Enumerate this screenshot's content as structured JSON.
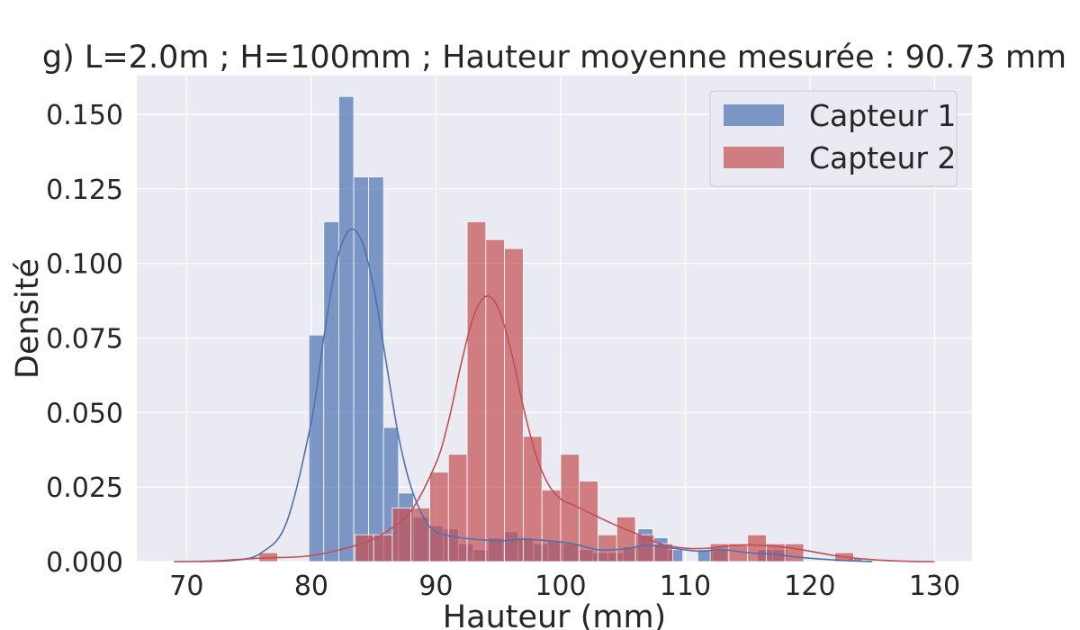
{
  "chart_data": {
    "type": "histogram",
    "title": "g) L=2.0m ; H=100mm ; Hauteur moyenne mesurée : 90.73 mm",
    "xlabel": "Hauteur (mm)",
    "ylabel": "Densité",
    "xlim": [
      66,
      133
    ],
    "ylim": [
      0,
      0.163
    ],
    "xticks": [
      70,
      80,
      90,
      100,
      110,
      120,
      130
    ],
    "xtick_labels": [
      "70",
      "80",
      "90",
      "100",
      "110",
      "120",
      "130"
    ],
    "yticks": [
      0,
      0.025,
      0.05,
      0.075,
      0.1,
      0.125,
      0.15
    ],
    "ytick_labels": [
      "0.000",
      "0.025",
      "0.050",
      "0.075",
      "0.100",
      "0.125",
      "0.150"
    ],
    "grid": true,
    "legend_position": "upper right",
    "bin_width": 1.2,
    "series": [
      {
        "name": "Capteur 1",
        "color": "#4c72b0",
        "bins": [
          {
            "x0": 79.8,
            "x1": 81.0,
            "density": 0.076
          },
          {
            "x0": 81.0,
            "x1": 82.2,
            "density": 0.114
          },
          {
            "x0": 82.2,
            "x1": 83.4,
            "density": 0.156
          },
          {
            "x0": 83.4,
            "x1": 84.6,
            "density": 0.129
          },
          {
            "x0": 84.6,
            "x1": 85.8,
            "density": 0.129
          },
          {
            "x0": 85.8,
            "x1": 87.0,
            "density": 0.045
          },
          {
            "x0": 87.0,
            "x1": 88.2,
            "density": 0.023
          },
          {
            "x0": 88.2,
            "x1": 89.4,
            "density": 0.015
          },
          {
            "x0": 89.4,
            "x1": 90.6,
            "density": 0.012
          },
          {
            "x0": 90.6,
            "x1": 91.8,
            "density": 0.011
          },
          {
            "x0": 91.8,
            "x1": 93.0,
            "density": 0.006
          },
          {
            "x0": 93.0,
            "x1": 94.2,
            "density": 0.004
          },
          {
            "x0": 94.2,
            "x1": 95.4,
            "density": 0.008
          },
          {
            "x0": 95.4,
            "x1": 96.6,
            "density": 0.01
          },
          {
            "x0": 96.6,
            "x1": 97.8,
            "density": 0.008
          },
          {
            "x0": 97.8,
            "x1": 99.0,
            "density": 0.006
          },
          {
            "x0": 99.0,
            "x1": 100.2,
            "density": 0.007
          },
          {
            "x0": 100.2,
            "x1": 101.4,
            "density": 0.006
          },
          {
            "x0": 101.4,
            "x1": 102.6,
            "density": 0.004
          },
          {
            "x0": 102.6,
            "x1": 103.8,
            "density": 0.003
          },
          {
            "x0": 103.8,
            "x1": 105.0,
            "density": 0.003
          },
          {
            "x0": 105.0,
            "x1": 106.2,
            "density": 0.005
          },
          {
            "x0": 106.2,
            "x1": 107.4,
            "density": 0.011
          },
          {
            "x0": 107.4,
            "x1": 108.6,
            "density": 0.008
          },
          {
            "x0": 108.6,
            "x1": 109.8,
            "density": 0.004
          },
          {
            "x0": 111.0,
            "x1": 112.2,
            "density": 0.004
          },
          {
            "x0": 112.2,
            "x1": 113.4,
            "density": 0.004
          },
          {
            "x0": 115.8,
            "x1": 117.0,
            "density": 0.004
          },
          {
            "x0": 117.0,
            "x1": 118.2,
            "density": 0.004
          },
          {
            "x0": 123.0,
            "x1": 124.2,
            "density": 0.001
          }
        ],
        "kde": [
          [
            71,
            0
          ],
          [
            74,
            0.0005
          ],
          [
            76,
            0.003
          ],
          [
            78,
            0.013
          ],
          [
            80,
            0.047
          ],
          [
            81,
            0.075
          ],
          [
            82,
            0.1
          ],
          [
            83,
            0.111
          ],
          [
            84,
            0.108
          ],
          [
            85,
            0.092
          ],
          [
            86,
            0.067
          ],
          [
            87,
            0.042
          ],
          [
            88,
            0.025
          ],
          [
            89,
            0.015
          ],
          [
            90,
            0.01
          ],
          [
            92,
            0.008
          ],
          [
            95,
            0.007
          ],
          [
            97,
            0.0075
          ],
          [
            99,
            0.007
          ],
          [
            101,
            0.006
          ],
          [
            103,
            0.004
          ],
          [
            105,
            0.0042
          ],
          [
            107,
            0.0055
          ],
          [
            109,
            0.0045
          ],
          [
            111,
            0.0035
          ],
          [
            113,
            0.004
          ],
          [
            115,
            0.003
          ],
          [
            117,
            0.0025
          ],
          [
            119,
            0.0015
          ],
          [
            121,
            0.0008
          ],
          [
            123,
            0.0003
          ],
          [
            125,
            0
          ]
        ]
      },
      {
        "name": "Capteur 2",
        "color": "#c44e52",
        "bins": [
          {
            "x0": 75.8,
            "x1": 77.3,
            "density": 0.003
          },
          {
            "x0": 83.5,
            "x1": 85.0,
            "density": 0.009
          },
          {
            "x0": 85.0,
            "x1": 86.5,
            "density": 0.009
          },
          {
            "x0": 86.5,
            "x1": 88.0,
            "density": 0.018
          },
          {
            "x0": 88.0,
            "x1": 89.5,
            "density": 0.018
          },
          {
            "x0": 89.5,
            "x1": 91.0,
            "density": 0.03
          },
          {
            "x0": 91.0,
            "x1": 92.5,
            "density": 0.036
          },
          {
            "x0": 92.5,
            "x1": 94.0,
            "density": 0.114
          },
          {
            "x0": 94.0,
            "x1": 95.5,
            "density": 0.108
          },
          {
            "x0": 95.5,
            "x1": 97.0,
            "density": 0.105
          },
          {
            "x0": 97.0,
            "x1": 98.5,
            "density": 0.042
          },
          {
            "x0": 98.5,
            "x1": 100.0,
            "density": 0.024
          },
          {
            "x0": 100.0,
            "x1": 101.5,
            "density": 0.036
          },
          {
            "x0": 101.5,
            "x1": 103.0,
            "density": 0.027
          },
          {
            "x0": 103.0,
            "x1": 104.5,
            "density": 0.009
          },
          {
            "x0": 104.5,
            "x1": 106.0,
            "density": 0.015
          },
          {
            "x0": 106.0,
            "x1": 107.5,
            "density": 0.009
          },
          {
            "x0": 107.5,
            "x1": 109.0,
            "density": 0.006
          },
          {
            "x0": 112.0,
            "x1": 113.5,
            "density": 0.006
          },
          {
            "x0": 113.5,
            "x1": 115.0,
            "density": 0.006
          },
          {
            "x0": 115.0,
            "x1": 116.5,
            "density": 0.009
          },
          {
            "x0": 116.5,
            "x1": 118.0,
            "density": 0.006
          },
          {
            "x0": 118.0,
            "x1": 119.5,
            "density": 0.006
          },
          {
            "x0": 122.0,
            "x1": 123.5,
            "density": 0.003
          }
        ],
        "kde": [
          [
            69,
            0
          ],
          [
            72,
            0.0002
          ],
          [
            76,
            0.0012
          ],
          [
            80,
            0.002
          ],
          [
            84,
            0.006
          ],
          [
            86,
            0.01
          ],
          [
            88,
            0.017
          ],
          [
            90,
            0.033
          ],
          [
            91,
            0.047
          ],
          [
            92,
            0.066
          ],
          [
            93,
            0.082
          ],
          [
            94,
            0.089
          ],
          [
            95,
            0.085
          ],
          [
            96,
            0.071
          ],
          [
            97,
            0.052
          ],
          [
            98,
            0.036
          ],
          [
            99,
            0.026
          ],
          [
            100,
            0.021
          ],
          [
            101,
            0.019
          ],
          [
            102,
            0.017
          ],
          [
            104,
            0.013
          ],
          [
            106,
            0.0095
          ],
          [
            108,
            0.006
          ],
          [
            110,
            0.0045
          ],
          [
            112,
            0.0045
          ],
          [
            114,
            0.0055
          ],
          [
            116,
            0.0055
          ],
          [
            118,
            0.0048
          ],
          [
            120,
            0.0035
          ],
          [
            122,
            0.002
          ],
          [
            124,
            0.001
          ],
          [
            127,
            0.0002
          ],
          [
            130,
            0
          ]
        ]
      }
    ]
  }
}
